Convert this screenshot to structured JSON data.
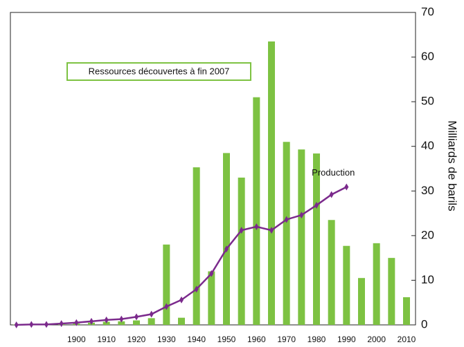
{
  "chart_data": {
    "type": "bar_line",
    "ylabel": "Milliards de barils",
    "annotation": "Ressources découvertes à fin 2007",
    "bars": {
      "color": "#7dc242",
      "x": [
        1880,
        1885,
        1890,
        1895,
        1900,
        1905,
        1910,
        1915,
        1920,
        1925,
        1930,
        1935,
        1940,
        1945,
        1950,
        1955,
        1960,
        1965,
        1970,
        1975,
        1980,
        1985,
        1990,
        1995,
        2000,
        2005,
        2010
      ],
      "values": [
        0.1,
        0.1,
        0.1,
        0.2,
        0.3,
        0.5,
        0.7,
        0.8,
        1.0,
        1.5,
        18,
        1.6,
        35.3,
        12,
        38.5,
        33,
        51,
        63.5,
        41,
        39.3,
        38.4,
        23.5,
        17.7,
        10.5,
        18.3,
        15,
        6.2
      ]
    },
    "series": [
      {
        "name": "Production",
        "color": "#7b2a8c",
        "x": [
          1880,
          1885,
          1890,
          1895,
          1900,
          1905,
          1910,
          1915,
          1920,
          1925,
          1930,
          1935,
          1940,
          1945,
          1950,
          1955,
          1960,
          1965,
          1970,
          1975,
          1980,
          1985,
          1990
        ],
        "values": [
          0,
          0.1,
          0.1,
          0.3,
          0.5,
          0.8,
          1.1,
          1.3,
          1.8,
          2.4,
          4.1,
          5.6,
          8,
          11.5,
          17,
          21.2,
          22,
          21.2,
          23.6,
          24.6,
          26.8,
          29.2,
          30.9
        ]
      }
    ],
    "xlim": [
      1878,
      2013
    ],
    "xticks": [
      1900,
      1910,
      1920,
      1930,
      1940,
      1950,
      1960,
      1970,
      1980,
      1990,
      2000,
      2010
    ],
    "ylim": [
      0,
      70
    ],
    "yticks": [
      0,
      10,
      20,
      30,
      40,
      50,
      60,
      70
    ]
  }
}
